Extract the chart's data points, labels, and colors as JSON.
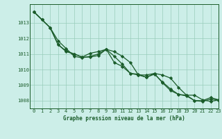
{
  "bg_color": "#cceee8",
  "grid_color": "#99ccbb",
  "line_color": "#1a5c2a",
  "xlabel": "Graphe pression niveau de la mer (hPa)",
  "ylim": [
    1007.5,
    1014.2
  ],
  "xlim": [
    -0.5,
    23
  ],
  "yticks": [
    1008,
    1009,
    1010,
    1011,
    1012,
    1013
  ],
  "xticks": [
    0,
    1,
    2,
    3,
    4,
    5,
    6,
    7,
    8,
    9,
    10,
    11,
    12,
    13,
    14,
    15,
    16,
    17,
    18,
    19,
    20,
    21,
    22,
    23
  ],
  "series": [
    [
      1013.7,
      1013.2,
      1012.7,
      1011.6,
      1011.15,
      1011.0,
      1010.8,
      1011.05,
      1011.15,
      1011.3,
      1011.15,
      1010.85,
      1010.45,
      1009.65,
      1009.65,
      1009.75,
      1009.65,
      1009.45,
      1008.85,
      1008.35,
      1008.35,
      1008.05,
      1007.95,
      1008.05
    ],
    [
      1013.7,
      1013.2,
      1012.7,
      1011.85,
      1011.35,
      1010.85,
      1010.75,
      1010.85,
      1011.0,
      1011.3,
      1010.45,
      1010.2,
      1009.75,
      1009.7,
      1009.5,
      1009.7,
      1009.2,
      1008.75,
      1008.4,
      1008.3,
      1008.0,
      1008.0,
      1008.2,
      1008.05
    ],
    [
      1013.7,
      1013.2,
      1012.7,
      1011.6,
      1011.2,
      1011.0,
      1010.8,
      1010.8,
      1010.9,
      1011.3,
      1010.85,
      1010.35,
      1009.75,
      1009.65,
      1009.5,
      1009.75,
      1009.15,
      1008.65,
      1008.4,
      1008.35,
      1008.0,
      1007.95,
      1008.1,
      1008.05
    ]
  ],
  "marker": "D",
  "markersize": 2.2,
  "linewidth": 0.9
}
